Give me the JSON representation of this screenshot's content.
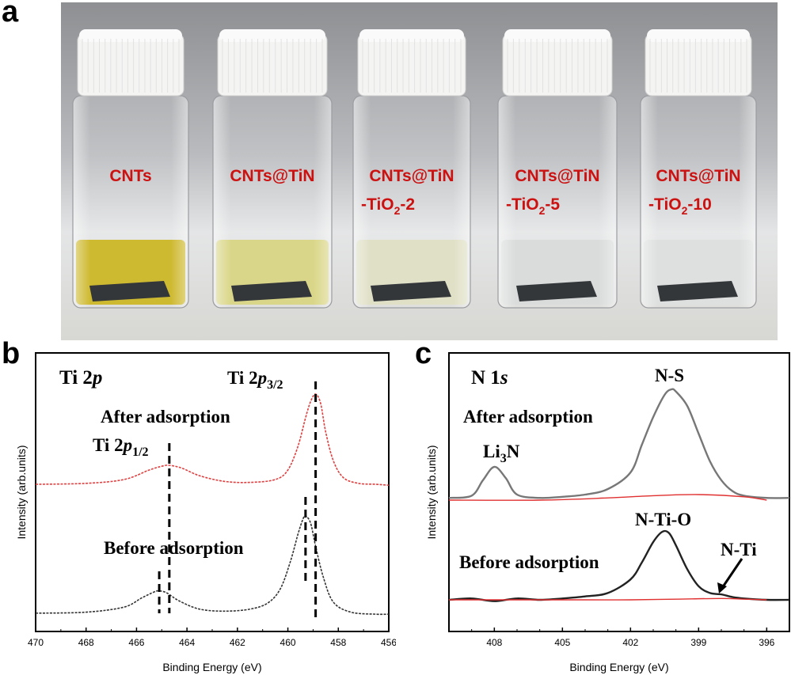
{
  "panels": {
    "a": "a",
    "b": "b",
    "c": "c"
  },
  "photo": {
    "vials": [
      {
        "line1": "CNTs",
        "line2": "",
        "liquid": "#c9b21a"
      },
      {
        "line1": "CNTs@TiN",
        "line2": "",
        "liquid": "#d6d27c"
      },
      {
        "line1": "CNTs@TiN",
        "line2_pre": "-TiO",
        "line2_sub": "2",
        "line2_post": "-2",
        "liquid": "#dcdcc0"
      },
      {
        "line1": "CNTs@TiN",
        "line2_pre": "-TiO",
        "line2_sub": "2",
        "line2_post": "-5",
        "liquid": "#d6d8d8"
      },
      {
        "line1": "CNTs@TiN",
        "line2_pre": "-TiO",
        "line2_sub": "2",
        "line2_post": "-10",
        "liquid": "#dadcdc"
      }
    ],
    "colors": {
      "label": "#cc1111",
      "cap": "#f4f4f2",
      "sample": "#1e2124"
    }
  },
  "chart_data": [
    {
      "type": "line",
      "panel": "b",
      "title_main": "Ti 2",
      "title_italic": "p",
      "xlabel": "Binding Energy (eV)",
      "ylabel": "Intensity (arb.units)",
      "xlim": [
        470,
        456
      ],
      "xticks": [
        "470",
        "468",
        "466",
        "464",
        "462",
        "460",
        "458",
        "456"
      ],
      "annotations": {
        "after": "After adsorption",
        "before": "Before adsorption",
        "p32_pre": "Ti 2",
        "p32_italic": "p",
        "p32_sub": "3/2",
        "p12_pre": "Ti 2",
        "p12_italic": "p",
        "p12_sub": "1/2"
      },
      "reference_lines": {
        "p32_after": 458.9,
        "p32_before": 459.3,
        "p12_after": 464.7,
        "p12_before": 465.1
      },
      "series": [
        {
          "color": "#e04040",
          "x": [
            470,
            468,
            466.5,
            465.5,
            465,
            464.7,
            464.2,
            463.5,
            462.5,
            461.5,
            460.5,
            460,
            459.6,
            459.3,
            459.1,
            458.9,
            458.7,
            458.5,
            458.2,
            457.8,
            457.2,
            456.5,
            456
          ],
          "y": [
            0.05,
            0.06,
            0.1,
            0.2,
            0.24,
            0.25,
            0.22,
            0.14,
            0.08,
            0.07,
            0.1,
            0.2,
            0.45,
            0.75,
            0.92,
            1.0,
            0.9,
            0.6,
            0.3,
            0.12,
            0.06,
            0.05,
            0.04
          ]
        },
        {
          "color": "#333333",
          "x": [
            470,
            468,
            466.5,
            465.8,
            465.3,
            465.1,
            464.8,
            464.3,
            463.5,
            462.5,
            461.5,
            460.8,
            460.3,
            459.9,
            459.6,
            459.4,
            459.3,
            459.1,
            458.9,
            458.6,
            458.2,
            457.5,
            456.5,
            456
          ],
          "y": [
            0.04,
            0.05,
            0.1,
            0.19,
            0.25,
            0.26,
            0.24,
            0.16,
            0.08,
            0.06,
            0.08,
            0.14,
            0.28,
            0.55,
            0.82,
            0.97,
            1.0,
            0.93,
            0.7,
            0.4,
            0.15,
            0.05,
            0.03,
            0.03
          ]
        }
      ]
    },
    {
      "type": "line",
      "panel": "c",
      "title_main": "N 1",
      "title_italic": "s",
      "xlabel": "Binding Energy (eV)",
      "ylabel": "Intensity (arb.units)",
      "xlim": [
        410,
        395
      ],
      "xticks": [
        "408",
        "405",
        "402",
        "399",
        "396"
      ],
      "annotations": {
        "after": "After adsorption",
        "before": "Before adsorption",
        "li3n_pre": "Li",
        "li3n_sub": "3",
        "li3n_post": "N",
        "ns": "N-S",
        "ntio": "N-Ti-O",
        "nti": "N-Ti"
      },
      "series": [
        {
          "name": "After raw",
          "color": "#777777",
          "x": [
            410,
            409,
            408.5,
            408,
            407.5,
            407,
            406,
            405,
            404,
            403,
            402,
            401.5,
            401,
            400.5,
            400.2,
            400,
            399.5,
            399,
            398.5,
            398,
            397.5,
            397,
            396,
            395
          ],
          "y": [
            0.02,
            0.04,
            0.18,
            0.3,
            0.2,
            0.05,
            0.02,
            0.03,
            0.05,
            0.1,
            0.25,
            0.5,
            0.75,
            0.95,
            1.0,
            0.98,
            0.85,
            0.6,
            0.35,
            0.18,
            0.08,
            0.04,
            0.02,
            0.02
          ]
        },
        {
          "name": "After baseline",
          "color": "#e03030",
          "x": [
            410,
            406,
            403,
            401,
            399,
            397,
            396
          ],
          "y": [
            0.0,
            0.0,
            0.02,
            0.04,
            0.05,
            0.03,
            0.0
          ]
        },
        {
          "name": "Before raw",
          "color": "#222222",
          "x": [
            410,
            409,
            408,
            407,
            406,
            405,
            404,
            403,
            402,
            401.5,
            401,
            400.6,
            400.3,
            400,
            399.5,
            399,
            398.5,
            398,
            397.5,
            397,
            396,
            395
          ],
          "y": [
            0.0,
            0.02,
            -0.02,
            0.02,
            0.0,
            0.02,
            0.05,
            0.1,
            0.3,
            0.55,
            0.85,
            1.0,
            0.98,
            0.8,
            0.45,
            0.2,
            0.1,
            0.08,
            0.04,
            0.02,
            0.0,
            0.0
          ]
        },
        {
          "name": "Before baseline",
          "color": "#e03030",
          "x": [
            410,
            404,
            402,
            400,
            398,
            397,
            396
          ],
          "y": [
            0.0,
            0.0,
            0.0,
            0.01,
            0.02,
            0.01,
            0.0
          ]
        }
      ]
    }
  ]
}
